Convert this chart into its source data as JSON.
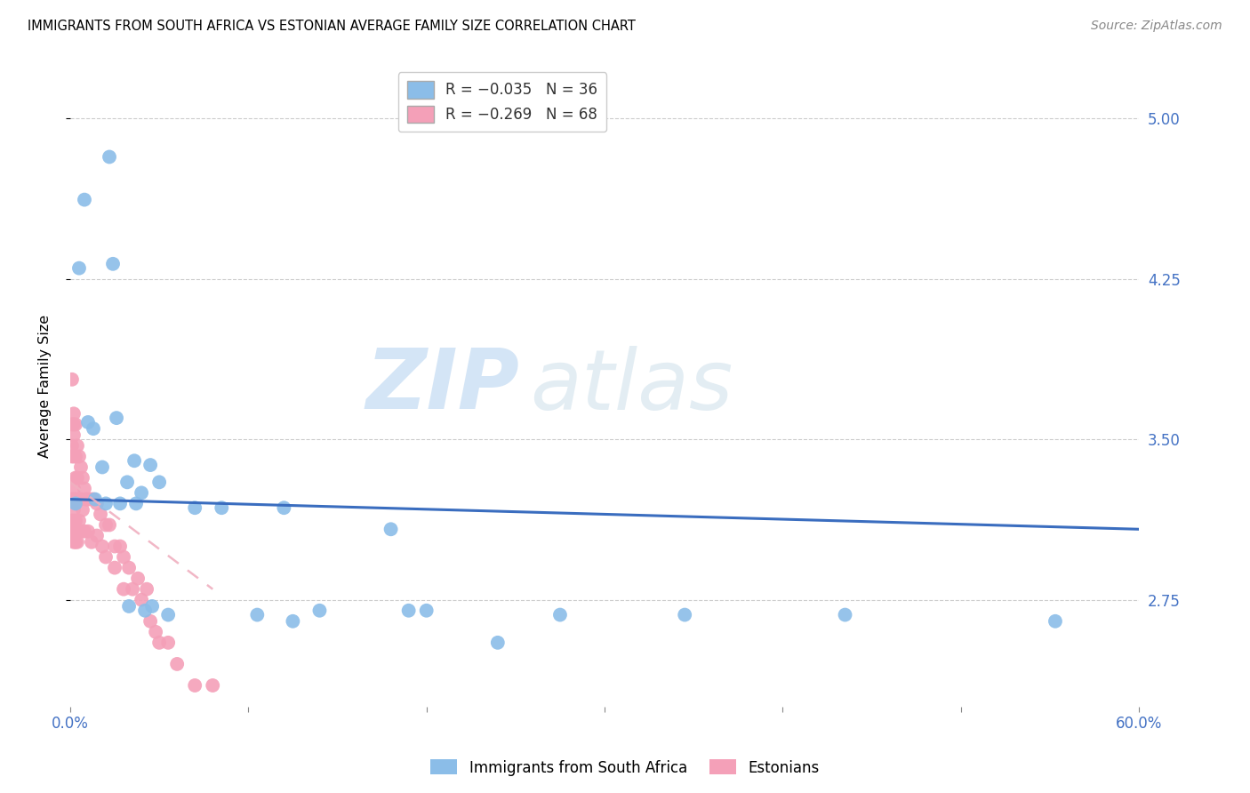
{
  "title": "IMMIGRANTS FROM SOUTH AFRICA VS ESTONIAN AVERAGE FAMILY SIZE CORRELATION CHART",
  "source": "Source: ZipAtlas.com",
  "ylabel": "Average Family Size",
  "yticks": [
    2.75,
    3.5,
    4.25,
    5.0
  ],
  "xlim": [
    0.0,
    0.6
  ],
  "ylim": [
    2.25,
    5.25
  ],
  "blue_color": "#8bbde8",
  "pink_color": "#f4a0b8",
  "blue_line_color": "#3a6dbf",
  "pink_line_color": "#f0b0c0",
  "watermark_zip": "ZIP",
  "watermark_atlas": "atlas",
  "sa_points": [
    [
      0.003,
      3.2
    ],
    [
      0.005,
      4.3
    ],
    [
      0.008,
      4.62
    ],
    [
      0.01,
      3.58
    ],
    [
      0.013,
      3.55
    ],
    [
      0.014,
      3.22
    ],
    [
      0.018,
      3.37
    ],
    [
      0.02,
      3.2
    ],
    [
      0.022,
      4.82
    ],
    [
      0.024,
      4.32
    ],
    [
      0.026,
      3.6
    ],
    [
      0.028,
      3.2
    ],
    [
      0.032,
      3.3
    ],
    [
      0.033,
      2.72
    ],
    [
      0.036,
      3.4
    ],
    [
      0.037,
      3.2
    ],
    [
      0.04,
      3.25
    ],
    [
      0.042,
      2.7
    ],
    [
      0.045,
      3.38
    ],
    [
      0.046,
      2.72
    ],
    [
      0.05,
      3.3
    ],
    [
      0.055,
      2.68
    ],
    [
      0.07,
      3.18
    ],
    [
      0.085,
      3.18
    ],
    [
      0.105,
      2.68
    ],
    [
      0.12,
      3.18
    ],
    [
      0.125,
      2.65
    ],
    [
      0.14,
      2.7
    ],
    [
      0.18,
      3.08
    ],
    [
      0.19,
      2.7
    ],
    [
      0.2,
      2.7
    ],
    [
      0.24,
      2.55
    ],
    [
      0.275,
      2.68
    ],
    [
      0.345,
      2.68
    ],
    [
      0.435,
      2.68
    ],
    [
      0.553,
      2.65
    ]
  ],
  "estonian_points": [
    [
      0.0,
      3.22
    ],
    [
      0.001,
      3.57
    ],
    [
      0.001,
      3.78
    ],
    [
      0.001,
      3.47
    ],
    [
      0.001,
      3.42
    ],
    [
      0.001,
      3.22
    ],
    [
      0.001,
      3.12
    ],
    [
      0.001,
      3.07
    ],
    [
      0.002,
      3.62
    ],
    [
      0.002,
      3.57
    ],
    [
      0.002,
      3.52
    ],
    [
      0.002,
      3.42
    ],
    [
      0.002,
      3.27
    ],
    [
      0.002,
      3.22
    ],
    [
      0.002,
      3.17
    ],
    [
      0.002,
      3.12
    ],
    [
      0.002,
      3.07
    ],
    [
      0.002,
      3.02
    ],
    [
      0.003,
      3.57
    ],
    [
      0.003,
      3.42
    ],
    [
      0.003,
      3.32
    ],
    [
      0.003,
      3.22
    ],
    [
      0.003,
      3.12
    ],
    [
      0.003,
      3.02
    ],
    [
      0.004,
      3.47
    ],
    [
      0.004,
      3.32
    ],
    [
      0.004,
      3.22
    ],
    [
      0.004,
      3.02
    ],
    [
      0.005,
      3.42
    ],
    [
      0.005,
      3.22
    ],
    [
      0.005,
      3.12
    ],
    [
      0.006,
      3.37
    ],
    [
      0.006,
      3.22
    ],
    [
      0.006,
      3.07
    ],
    [
      0.007,
      3.32
    ],
    [
      0.007,
      3.17
    ],
    [
      0.008,
      3.27
    ],
    [
      0.008,
      3.07
    ],
    [
      0.009,
      3.22
    ],
    [
      0.01,
      3.22
    ],
    [
      0.01,
      3.07
    ],
    [
      0.012,
      3.22
    ],
    [
      0.012,
      3.02
    ],
    [
      0.013,
      3.22
    ],
    [
      0.015,
      3.2
    ],
    [
      0.015,
      3.05
    ],
    [
      0.017,
      3.15
    ],
    [
      0.018,
      3.0
    ],
    [
      0.02,
      3.1
    ],
    [
      0.02,
      2.95
    ],
    [
      0.022,
      3.1
    ],
    [
      0.025,
      3.0
    ],
    [
      0.025,
      2.9
    ],
    [
      0.028,
      3.0
    ],
    [
      0.03,
      2.95
    ],
    [
      0.03,
      2.8
    ],
    [
      0.033,
      2.9
    ],
    [
      0.035,
      2.8
    ],
    [
      0.038,
      2.85
    ],
    [
      0.04,
      2.75
    ],
    [
      0.043,
      2.8
    ],
    [
      0.045,
      2.65
    ],
    [
      0.048,
      2.6
    ],
    [
      0.05,
      2.55
    ],
    [
      0.055,
      2.55
    ],
    [
      0.06,
      2.45
    ],
    [
      0.07,
      2.35
    ],
    [
      0.08,
      2.35
    ]
  ],
  "sa_line_x": [
    0.0,
    0.6
  ],
  "sa_line_y": [
    3.22,
    3.08
  ],
  "est_line_x": [
    0.0,
    0.08
  ],
  "est_line_y": [
    3.3,
    2.8
  ]
}
